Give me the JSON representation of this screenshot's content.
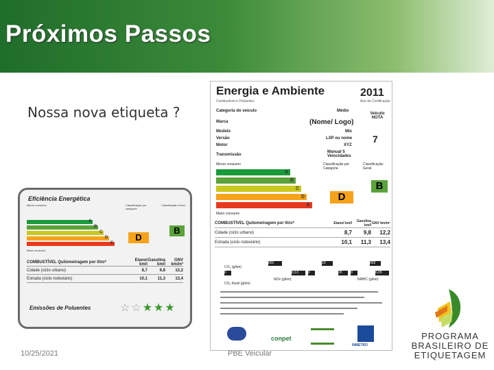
{
  "header": {
    "title": "Próximos Passos"
  },
  "subtitle": "Nossa nova etiqueta ?",
  "footer": {
    "date": "10/25/2021",
    "center": "PBE Veicular"
  },
  "small_label": {
    "efficiency_title": "Eficiência Energética",
    "less_consumption": "Menor consumo",
    "more_consumption": "Maior consumo",
    "class_category": "Classificação por categoria",
    "class_general": "Classificação Geral",
    "class_category_value": "D",
    "class_general_value": "B",
    "letters": [
      "A",
      "B",
      "C",
      "D",
      "E"
    ],
    "table": {
      "header": [
        "COMBUSTÍVEL Quilometragem por litro*",
        "Etanol km/l",
        "Gasolina km/l",
        "GNV km/m³"
      ],
      "rows": [
        [
          "Cidade (ciclo urbano)",
          "8,7",
          "9,8",
          "12,2"
        ],
        [
          "Estrada (ciclo rodoviário)",
          "10,1",
          "11,3",
          "13,4"
        ]
      ]
    },
    "emissions_title": "Emissões de Poluentes"
  },
  "big_label": {
    "title": "Energia e Ambiente",
    "year": "2011",
    "sub_left": "Combustível e Poluentes",
    "sub_right": "Ano de Certificação",
    "left_fields": [
      "Categoria do veículo",
      "Marca",
      "Modelo",
      "Versão",
      "Motor",
      "Transmissão"
    ],
    "mid_fields": [
      "Médio",
      "(Nome/ Logo)",
      "Mix",
      "LXP ou nome",
      "XYZ",
      "Manual 5 Velocidades"
    ],
    "vehicle_note_label": "Veículo NOTA",
    "vehicle_note_value": "7",
    "less_consumption": "Menor consumo",
    "more_consumption": "Maior consumo",
    "class_category": "Classificação por Categoria",
    "class_general": "Classificação Geral",
    "class_category_value": "D",
    "class_general_value": "B",
    "letters": [
      "A",
      "B",
      "C",
      "D",
      "E"
    ],
    "table": {
      "header": [
        "COMBUSTÍVEL Quilometragem por litro*",
        "Etanol km/l",
        "Gasolina km/l",
        "GNV km/m³"
      ],
      "rows": [
        [
          "Cidade (ciclo urbano)",
          "8,7",
          "9,8",
          "12,2"
        ],
        [
          "Estrada (ciclo rodoviário)",
          "10,1",
          "11,3",
          "13,4"
        ]
      ]
    },
    "co2_label": "CO₂ (g/km)",
    "nox_label": "NOx (g/km)",
    "co2s_label": "CO₂ fóssil (g/km)",
    "nmhc_label": "NMHC (g/km)",
    "scale_values": [
      "001",
      "10",
      "003",
      "0",
      "0,13",
      "0",
      "20",
      "0",
      "0,05"
    ],
    "logos": [
      "conpet",
      "INMETRO"
    ]
  },
  "programa": {
    "line1": "PROGRAMA",
    "line2": "BRASILEIRO DE",
    "line3": "ETIQUETAGEM"
  },
  "colors": {
    "header_green": "#1f6d2a",
    "class_A": "#1a9a3a",
    "class_B": "#5aa23a",
    "class_C": "#c8c81e",
    "class_D": "#f6a21a",
    "class_E": "#e63a1e"
  }
}
